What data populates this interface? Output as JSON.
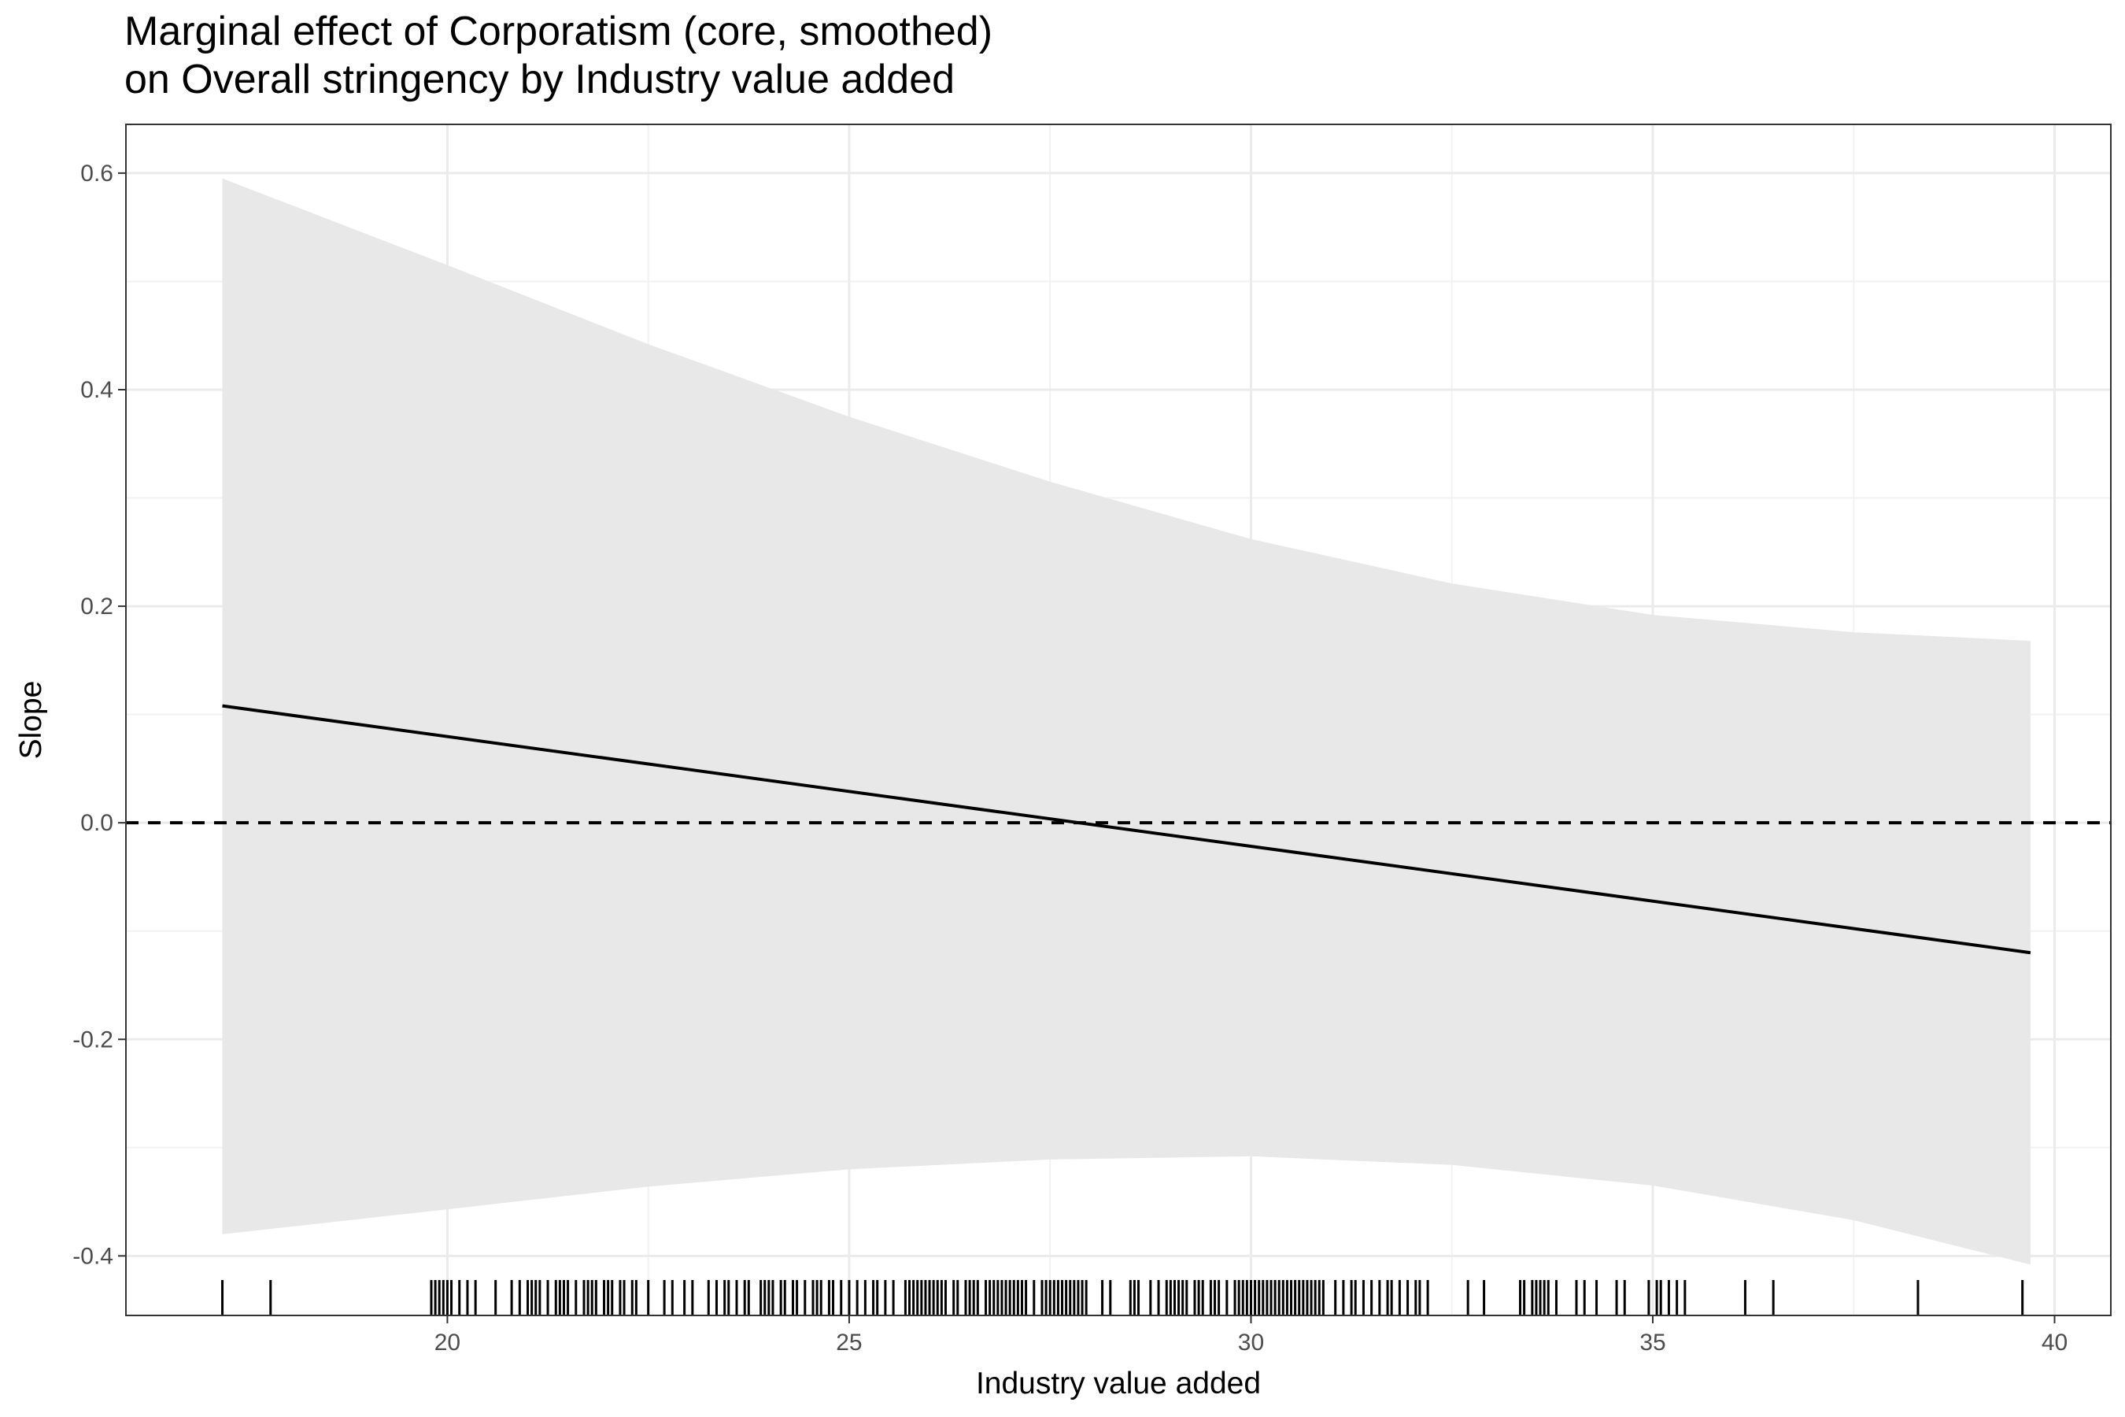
{
  "chart_data": {
    "type": "line",
    "title": "Marginal effect of Corporatism (core, smoothed)\non Overall stringency by Industry value added",
    "xlabel": "Industry value added",
    "ylabel": "Slope",
    "xlim": [
      16.0,
      40.7
    ],
    "ylim": [
      -0.455,
      0.645
    ],
    "x_ticks": [
      20,
      25,
      30,
      35,
      40
    ],
    "y_ticks": [
      -0.4,
      -0.2,
      0.0,
      0.2,
      0.4,
      0.6
    ],
    "x_tick_labels": [
      "20",
      "25",
      "30",
      "35",
      "40"
    ],
    "y_tick_labels": [
      "-0.4",
      "-0.2",
      "0.0",
      "0.2",
      "0.4",
      "0.6"
    ],
    "grid": true,
    "series": [
      {
        "type": "line",
        "x": [
          17.2,
          39.7
        ],
        "y": [
          0.108,
          -0.12
        ]
      },
      {
        "type": "ribbon",
        "x": [
          17.2,
          20,
          22.5,
          25,
          27.5,
          30,
          32.5,
          35,
          37.5,
          39.7
        ],
        "lower": [
          -0.38,
          -0.357,
          -0.336,
          -0.32,
          -0.311,
          -0.308,
          -0.316,
          -0.335,
          -0.367,
          -0.408
        ],
        "upper": [
          0.595,
          0.515,
          0.442,
          0.375,
          0.315,
          0.262,
          0.221,
          0.192,
          0.176,
          0.168
        ]
      }
    ],
    "reference_line": {
      "y": 0.0,
      "style": "dashed"
    },
    "rug_x": [
      17.2,
      17.8,
      19.8,
      19.85,
      19.9,
      19.95,
      20.0,
      20.05,
      20.15,
      20.25,
      20.35,
      20.6,
      20.8,
      20.9,
      21.0,
      21.05,
      21.1,
      21.15,
      21.25,
      21.35,
      21.4,
      21.45,
      21.5,
      21.6,
      21.7,
      21.75,
      21.8,
      21.85,
      21.95,
      22.0,
      22.05,
      22.15,
      22.2,
      22.3,
      22.35,
      22.5,
      22.7,
      22.8,
      22.95,
      23.05,
      23.25,
      23.35,
      23.45,
      23.5,
      23.6,
      23.7,
      23.75,
      23.9,
      23.95,
      24.0,
      24.05,
      24.15,
      24.2,
      24.3,
      24.35,
      24.45,
      24.55,
      24.6,
      24.65,
      24.75,
      24.8,
      24.9,
      25.0,
      25.1,
      25.2,
      25.3,
      25.35,
      25.45,
      25.55,
      25.7,
      25.75,
      25.8,
      25.85,
      25.9,
      25.95,
      26.0,
      26.05,
      26.1,
      26.15,
      26.2,
      26.3,
      26.35,
      26.45,
      26.5,
      26.55,
      26.6,
      26.7,
      26.75,
      26.8,
      26.85,
      26.9,
      26.95,
      27.0,
      27.05,
      27.1,
      27.15,
      27.2,
      27.3,
      27.4,
      27.45,
      27.5,
      27.55,
      27.6,
      27.65,
      27.7,
      27.75,
      27.8,
      27.85,
      27.9,
      27.95,
      28.15,
      28.25,
      28.5,
      28.55,
      28.6,
      28.75,
      28.85,
      28.95,
      29.0,
      29.05,
      29.1,
      29.15,
      29.2,
      29.3,
      29.35,
      29.4,
      29.5,
      29.55,
      29.6,
      29.7,
      29.8,
      29.85,
      29.9,
      29.95,
      30.0,
      30.05,
      30.1,
      30.15,
      30.2,
      30.25,
      30.3,
      30.35,
      30.4,
      30.45,
      30.5,
      30.55,
      30.6,
      30.65,
      30.7,
      30.75,
      30.8,
      30.85,
      30.9,
      31.05,
      31.15,
      31.25,
      31.3,
      31.4,
      31.5,
      31.6,
      31.7,
      31.75,
      31.85,
      31.95,
      32.05,
      32.1,
      32.2,
      32.7,
      32.9,
      33.35,
      33.4,
      33.5,
      33.55,
      33.6,
      33.65,
      33.7,
      33.8,
      34.05,
      34.15,
      34.3,
      34.55,
      34.65,
      34.95,
      35.05,
      35.1,
      35.2,
      35.3,
      35.4,
      36.15,
      36.5,
      38.3,
      39.6
    ]
  }
}
